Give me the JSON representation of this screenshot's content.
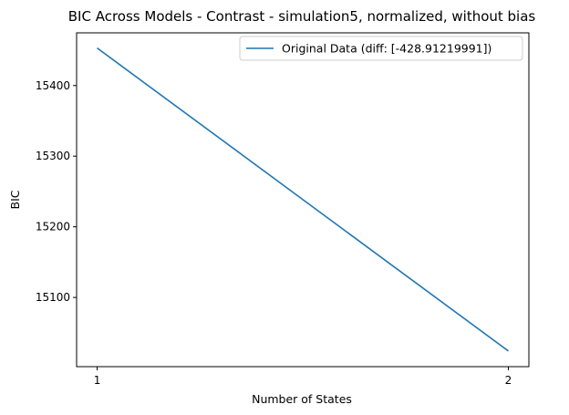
{
  "chart_data": {
    "type": "line",
    "title": "BIC Across Models - Contrast - simulation5, normalized, without bias",
    "xlabel": "Number of States",
    "ylabel": "BIC",
    "x": [
      1,
      2
    ],
    "xticks": [
      "1",
      "2"
    ],
    "yticks": [
      15100,
      15200,
      15300,
      15400
    ],
    "ytick_labels": [
      "15100",
      "15200",
      "15300",
      "15400"
    ],
    "xlim": [
      0.95,
      2.05
    ],
    "ylim": [
      15002.0,
      15474.6
    ],
    "grid": false,
    "legend_position": "top-right",
    "series": [
      {
        "name": "Original Data (diff: [-428.91219991])",
        "color": "#1f77b4",
        "values": [
          15453.1,
          15024.2
        ]
      }
    ]
  }
}
